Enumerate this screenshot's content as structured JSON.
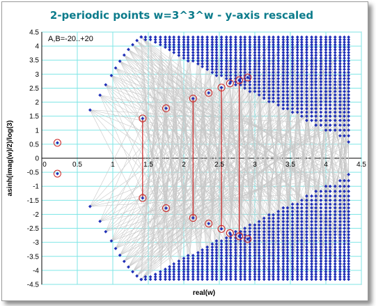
{
  "chart_data": {
    "type": "scatter",
    "title": "2-periodic points w=3^3^w - y-axis rescaled",
    "xlabel": "real(w)",
    "ylabel": "asinh(imag(w)/2)/log(3)",
    "annotation": "A,B=-20..+20",
    "xlim": [
      0,
      4.5
    ],
    "ylim": [
      -4.5,
      4.5
    ],
    "x_ticks": [
      "0",
      "0.5",
      "1",
      "1.5",
      "2",
      "2.5",
      "3",
      "3.5",
      "4",
      "4.5"
    ],
    "y_ticks": [
      "4.5",
      "4",
      "3.5",
      "3",
      "2.5",
      "2",
      "1.5",
      "1",
      "0.5",
      "0",
      "-0.5",
      "-1",
      "-1.5",
      "-2",
      "-2.5",
      "-3",
      "-3.5",
      "-4",
      "-4.5"
    ],
    "grid": true,
    "colors": {
      "points": "#1f2fb8",
      "connect_lines": "#c8c8c8",
      "circles": "#cc2222",
      "pair_lines": "#cc2222",
      "plot_bg": "#ffffff",
      "grid": "#7fe6e6"
    },
    "left_branch": [
      {
        "x": 0.68,
        "y": 1.72
      },
      {
        "x": 0.82,
        "y": 2.25
      },
      {
        "x": 0.9,
        "y": 2.62
      },
      {
        "x": 0.98,
        "y": 2.95
      },
      {
        "x": 1.04,
        "y": 3.22
      },
      {
        "x": 1.1,
        "y": 3.46
      },
      {
        "x": 1.16,
        "y": 3.68
      },
      {
        "x": 1.22,
        "y": 3.88
      },
      {
        "x": 1.28,
        "y": 4.05
      },
      {
        "x": 1.34,
        "y": 4.2
      },
      {
        "x": 1.4,
        "y": 4.33
      }
    ],
    "grid_columns": [
      1.4,
      1.46,
      1.53,
      1.6,
      1.67,
      1.74,
      1.8,
      1.86,
      1.93,
      2.0,
      2.06,
      2.13,
      2.2,
      2.26,
      2.33,
      2.4,
      2.46,
      2.53,
      2.6,
      2.66,
      2.73,
      2.8,
      2.86,
      2.93,
      3.0,
      3.06,
      3.13,
      3.2,
      3.26,
      3.33,
      3.4,
      3.46,
      3.53,
      3.6,
      3.66,
      3.73,
      3.8,
      3.86,
      3.93,
      4.0,
      4.06,
      4.13,
      4.2,
      4.26,
      4.32
    ],
    "grid_rows": [
      0.58,
      0.8,
      1.0,
      1.18,
      1.35,
      1.5,
      1.64,
      1.77,
      1.9,
      2.02,
      2.14,
      2.26,
      2.38,
      2.5,
      2.62,
      2.73,
      2.84,
      2.95,
      3.06,
      3.17,
      3.27,
      3.37,
      3.47,
      3.57,
      3.67,
      3.77,
      3.87,
      3.96,
      4.05,
      4.14,
      4.23,
      4.32
    ],
    "circled_points": [
      {
        "x": 0.22,
        "y": 0.55
      },
      {
        "x": 1.42,
        "y": 1.42
      },
      {
        "x": 1.75,
        "y": 1.78
      },
      {
        "x": 2.13,
        "y": 2.13
      },
      {
        "x": 2.35,
        "y": 2.33
      },
      {
        "x": 2.53,
        "y": 2.52
      },
      {
        "x": 2.65,
        "y": 2.67
      },
      {
        "x": 2.78,
        "y": 2.78
      },
      {
        "x": 2.9,
        "y": 2.88
      }
    ],
    "pair_lines_x": [
      1.42,
      2.13,
      2.53,
      2.78
    ]
  }
}
